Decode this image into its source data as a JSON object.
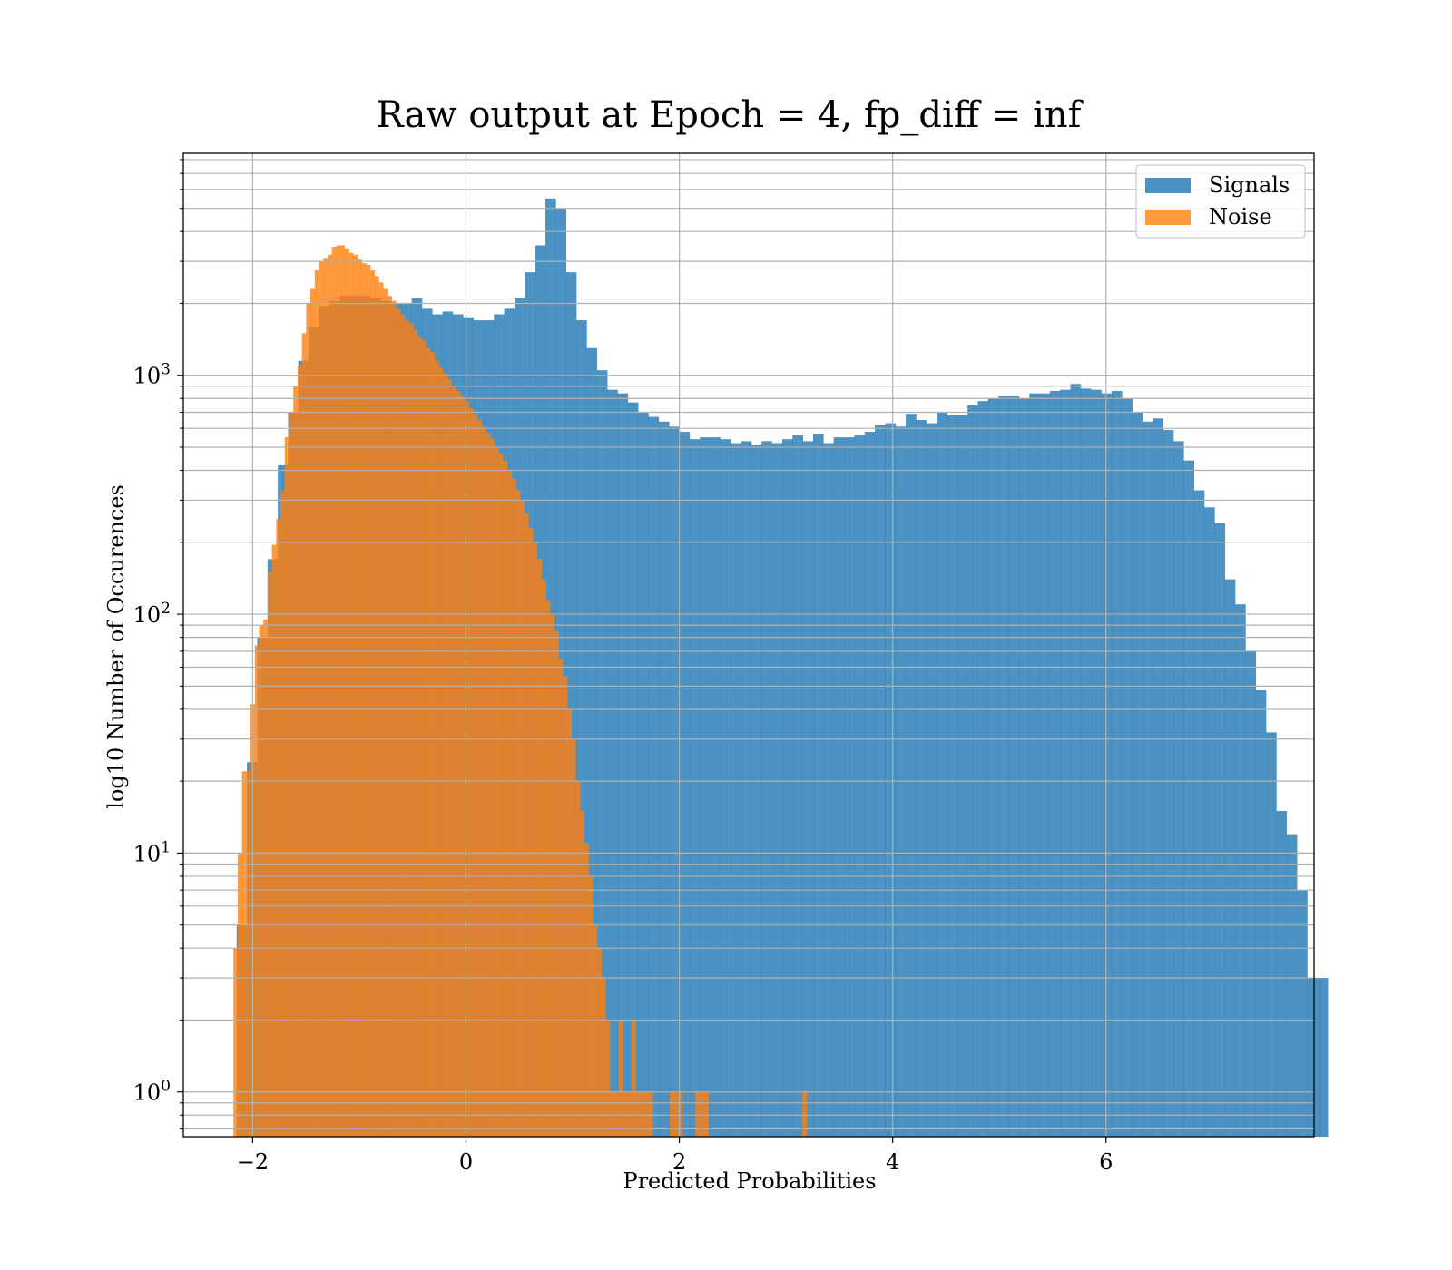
{
  "chart_data": {
    "type": "bar",
    "title": "Raw output at Epoch = 4, fp_diff = inf",
    "xlabel": "Predicted Probabilities",
    "ylabel": "log10 Number of Occurences",
    "xlim": [
      -2.65,
      7.95
    ],
    "ylim": [
      0.65,
      8500
    ],
    "yscale": "log",
    "grid": true,
    "legend_position": "top-right",
    "x_ticks": [
      {
        "value": -2,
        "label": "−2"
      },
      {
        "value": 0,
        "label": "0"
      },
      {
        "value": 2,
        "label": "2"
      },
      {
        "value": 4,
        "label": "4"
      },
      {
        "value": 6,
        "label": "6"
      }
    ],
    "y_ticks": [
      {
        "value": 1,
        "base": "10",
        "exp": "0"
      },
      {
        "value": 10,
        "base": "10",
        "exp": "1"
      },
      {
        "value": 100,
        "base": "10",
        "exp": "2"
      },
      {
        "value": 1000,
        "base": "10",
        "exp": "3"
      }
    ],
    "series": [
      {
        "name": "Signals",
        "color": "#1f77b4",
        "opacity": 0.8,
        "bin_start": -2.15,
        "bin_width": 0.0965,
        "values": [
          5,
          24,
          80,
          170,
          420,
          700,
          1150,
          1600,
          1950,
          2050,
          2150,
          2150,
          2150,
          2100,
          2050,
          2000,
          2000,
          2100,
          1900,
          1800,
          1850,
          1800,
          1750,
          1700,
          1700,
          1800,
          1900,
          2100,
          2700,
          3500,
          5500,
          5000,
          2700,
          1700,
          1300,
          1050,
          870,
          840,
          770,
          700,
          670,
          640,
          610,
          580,
          540,
          550,
          550,
          540,
          520,
          530,
          510,
          530,
          520,
          540,
          560,
          530,
          570,
          520,
          550,
          550,
          560,
          580,
          620,
          630,
          610,
          690,
          650,
          630,
          700,
          680,
          680,
          750,
          780,
          800,
          820,
          820,
          800,
          840,
          840,
          860,
          870,
          920,
          880,
          870,
          840,
          860,
          800,
          700,
          640,
          660,
          590,
          530,
          440,
          330,
          280,
          240,
          140,
          110,
          70,
          48,
          32,
          15,
          12,
          7,
          3,
          3
        ]
      },
      {
        "name": "Noise",
        "color": "#ff7f0e",
        "opacity": 0.8,
        "bin_start": -2.18,
        "bin_width": 0.0401,
        "values": [
          4,
          10,
          22,
          22,
          42,
          74,
          90,
          95,
          150,
          195,
          250,
          330,
          550,
          700,
          900,
          1100,
          1500,
          2000,
          2300,
          2750,
          3000,
          3100,
          3200,
          3450,
          3500,
          3500,
          3400,
          3250,
          3200,
          3050,
          2950,
          2900,
          2750,
          2600,
          2450,
          2300,
          2150,
          2050,
          1900,
          1800,
          1700,
          1650,
          1550,
          1450,
          1400,
          1300,
          1250,
          1150,
          1080,
          1020,
          960,
          900,
          860,
          820,
          780,
          730,
          690,
          650,
          610,
          575,
          540,
          500,
          470,
          440,
          400,
          370,
          330,
          300,
          265,
          230,
          200,
          170,
          140,
          115,
          100,
          85,
          65,
          55,
          40,
          30,
          20,
          15,
          11,
          8,
          5,
          4,
          3,
          2,
          1,
          1,
          2,
          1,
          1,
          2,
          1,
          1,
          1,
          1,
          0,
          0,
          0,
          0,
          1,
          1,
          1,
          0,
          0,
          0,
          1,
          1,
          1,
          0,
          0,
          0,
          0,
          0,
          0,
          0,
          0,
          0,
          0,
          0,
          0,
          0,
          0,
          0,
          0,
          0,
          0,
          0,
          0,
          0,
          0,
          1
        ]
      }
    ]
  }
}
